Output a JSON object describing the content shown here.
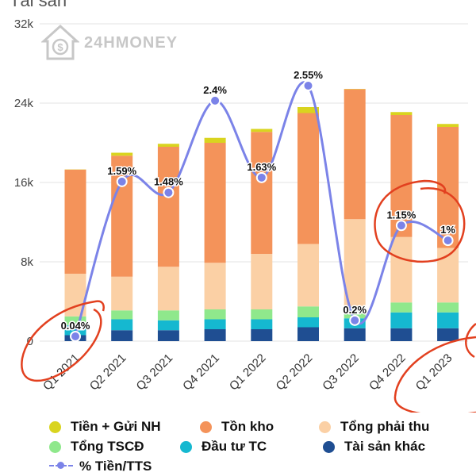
{
  "title": "Tài sản",
  "watermark": "24HMONEY",
  "colors": {
    "tien_gui_nh": "#d9d41f",
    "ton_kho": "#f4935a",
    "tong_phai_thu": "#fbd0a5",
    "tong_tscd": "#8fe88c",
    "dau_tu_tc": "#15b8d0",
    "tai_san_khac": "#1f4e92",
    "pct_line": "#7b83e8",
    "annotation": "#e2401f"
  },
  "chart_data": {
    "type": "bar",
    "stacked": true,
    "categories": [
      "Q1 2021",
      "Q2 2021",
      "Q3 2021",
      "Q4 2021",
      "Q1 2022",
      "Q2 2022",
      "Q3 2022",
      "Q4 2022",
      "Q1 2023"
    ],
    "ylim": [
      0,
      32000
    ],
    "yticks": [
      0,
      8000,
      16000,
      24000,
      32000
    ],
    "ytick_labels": [
      "0",
      "8k",
      "16k",
      "24k",
      "32k"
    ],
    "grid": true,
    "legend_position": "bottom",
    "series": [
      {
        "name": "Tài sản khác",
        "color_key": "tai_san_khac",
        "values": [
          600,
          1100,
          1100,
          1200,
          1200,
          1400,
          1300,
          1300,
          1300
        ]
      },
      {
        "name": "Đầu tư TC",
        "color_key": "dau_tu_tc",
        "values": [
          1000,
          1100,
          1000,
          1000,
          1000,
          1000,
          1000,
          1600,
          1600
        ]
      },
      {
        "name": "Tổng TSCĐ",
        "color_key": "tong_tscd",
        "values": [
          900,
          900,
          1000,
          1000,
          1000,
          1100,
          1200,
          1000,
          1000
        ]
      },
      {
        "name": "Tổng phải thu",
        "color_key": "tong_phai_thu",
        "values": [
          4300,
          3400,
          4400,
          4700,
          5600,
          6300,
          8800,
          6600,
          5500
        ]
      },
      {
        "name": "Tồn kho",
        "color_key": "ton_kho",
        "values": [
          10500,
          12200,
          12100,
          12100,
          12300,
          13200,
          13100,
          12300,
          12200
        ]
      },
      {
        "name": "Tiền + Gửi NH",
        "color_key": "tien_gui_nh",
        "values": [
          20,
          300,
          300,
          500,
          300,
          600,
          30,
          300,
          300
        ]
      }
    ],
    "line_series": {
      "name": "% Tiền/TTS",
      "values": [
        0.04,
        1.59,
        1.48,
        2.4,
        1.63,
        2.55,
        0.2,
        1.15,
        1.0
      ],
      "labels": [
        "0.04%",
        "1.59%",
        "1.48%",
        "2.4%",
        "1.63%",
        "2.55%",
        "0.2%",
        "1.15%",
        "1%"
      ],
      "scale_note": "drawn on secondary axis"
    },
    "legend": [
      "Tiền + Gửi NH",
      "Tồn kho",
      "Tổng phải thu",
      "Tổng TSCĐ",
      "Đầu tư TC",
      "Tài sản khác",
      "% Tiền/TTS"
    ]
  }
}
